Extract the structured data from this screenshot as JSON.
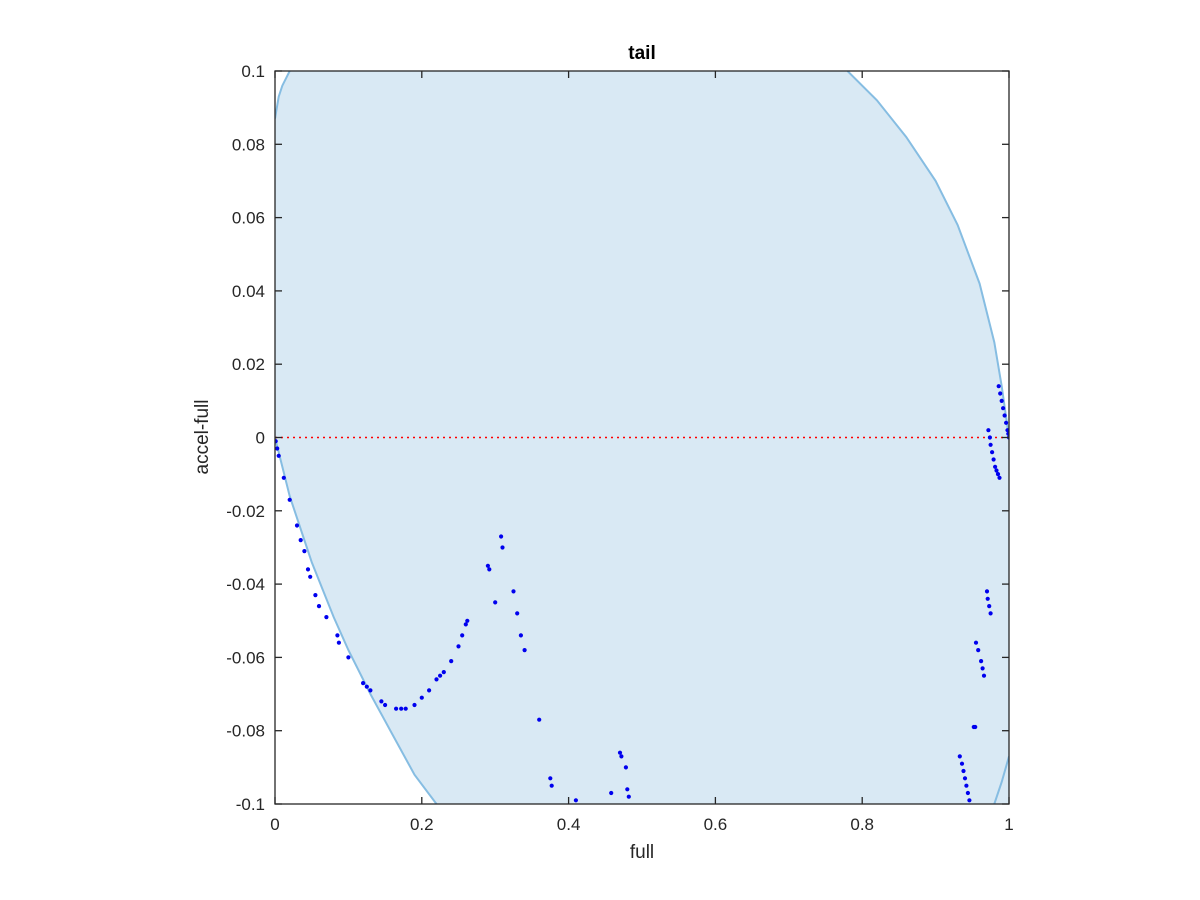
{
  "chart_data": {
    "type": "scatter",
    "title": "tail",
    "xlabel": "full",
    "ylabel": "accel-full",
    "xlim": [
      0,
      1
    ],
    "ylim": [
      -0.1,
      0.1
    ],
    "xticks": [
      0,
      0.2,
      0.4,
      0.6,
      0.8,
      1
    ],
    "xtick_labels": [
      "0",
      "0.2",
      "0.4",
      "0.6",
      "0.8",
      "1"
    ],
    "yticks": [
      -0.1,
      -0.08,
      -0.06,
      -0.04,
      -0.02,
      0,
      0.02,
      0.04,
      0.06,
      0.08,
      0.1
    ],
    "ytick_labels": [
      "-0.1",
      "-0.08",
      "-0.06",
      "-0.04",
      "-0.02",
      "0",
      "0.02",
      "0.04",
      "0.06",
      "0.08",
      "0.1"
    ],
    "grid": false,
    "colors": {
      "region_fill": "#d9e9f4",
      "region_edge": "#86bde2",
      "points": "#0000ee",
      "reference_line": "#ff0000",
      "axes": "#262626"
    },
    "region": {
      "left_boundary": [
        [
          0,
          0.087
        ],
        [
          0.005,
          0.093
        ],
        [
          0.01,
          0.096
        ],
        [
          0.02,
          0.1
        ]
      ],
      "right_boundary": [
        [
          0.78,
          0.1
        ],
        [
          0.82,
          0.092
        ],
        [
          0.86,
          0.082
        ],
        [
          0.9,
          0.07
        ],
        [
          0.93,
          0.058
        ],
        [
          0.96,
          0.042
        ],
        [
          0.98,
          0.026
        ],
        [
          0.99,
          0.014
        ],
        [
          1,
          0
        ]
      ],
      "lower_left_boundary": [
        [
          0,
          0
        ],
        [
          0.02,
          -0.016
        ],
        [
          0.05,
          -0.034
        ],
        [
          0.08,
          -0.049
        ],
        [
          0.1,
          -0.058
        ],
        [
          0.13,
          -0.07
        ],
        [
          0.16,
          -0.081
        ],
        [
          0.19,
          -0.092
        ],
        [
          0.22,
          -0.1
        ]
      ],
      "lower_right_boundary": [
        [
          0.98,
          -0.1
        ],
        [
          0.99,
          -0.094
        ],
        [
          1,
          -0.087
        ]
      ]
    },
    "reference_line": {
      "y": 0,
      "style": "dotted"
    },
    "series": [
      {
        "points": [
          [
            0.001,
            -0.001
          ],
          [
            0.003,
            -0.003
          ],
          [
            0.005,
            -0.005
          ],
          [
            0.012,
            -0.011
          ],
          [
            0.02,
            -0.017
          ],
          [
            0.03,
            -0.024
          ],
          [
            0.035,
            -0.028
          ],
          [
            0.04,
            -0.031
          ],
          [
            0.045,
            -0.036
          ],
          [
            0.048,
            -0.038
          ],
          [
            0.055,
            -0.043
          ],
          [
            0.06,
            -0.046
          ],
          [
            0.07,
            -0.049
          ],
          [
            0.085,
            -0.054
          ],
          [
            0.087,
            -0.056
          ],
          [
            0.1,
            -0.06
          ],
          [
            0.12,
            -0.067
          ],
          [
            0.125,
            -0.068
          ],
          [
            0.13,
            -0.069
          ],
          [
            0.145,
            -0.072
          ],
          [
            0.15,
            -0.073
          ],
          [
            0.165,
            -0.074
          ],
          [
            0.172,
            -0.074
          ],
          [
            0.178,
            -0.074
          ],
          [
            0.19,
            -0.073
          ],
          [
            0.2,
            -0.071
          ],
          [
            0.21,
            -0.069
          ],
          [
            0.22,
            -0.066
          ],
          [
            0.225,
            -0.065
          ],
          [
            0.23,
            -0.064
          ],
          [
            0.24,
            -0.061
          ],
          [
            0.25,
            -0.057
          ],
          [
            0.255,
            -0.054
          ],
          [
            0.26,
            -0.051
          ],
          [
            0.262,
            -0.05
          ],
          [
            0.29,
            -0.035
          ],
          [
            0.292,
            -0.036
          ],
          [
            0.3,
            -0.045
          ],
          [
            0.308,
            -0.027
          ],
          [
            0.31,
            -0.03
          ],
          [
            0.325,
            -0.042
          ],
          [
            0.33,
            -0.048
          ],
          [
            0.335,
            -0.054
          ],
          [
            0.34,
            -0.058
          ],
          [
            0.36,
            -0.077
          ],
          [
            0.375,
            -0.093
          ],
          [
            0.377,
            -0.095
          ],
          [
            0.41,
            -0.099
          ],
          [
            0.458,
            -0.097
          ],
          [
            0.47,
            -0.086
          ],
          [
            0.472,
            -0.087
          ],
          [
            0.478,
            -0.09
          ],
          [
            0.48,
            -0.096
          ],
          [
            0.482,
            -0.098
          ],
          [
            0.972,
            0.002
          ],
          [
            0.974,
            0.0
          ],
          [
            0.975,
            -0.002
          ],
          [
            0.977,
            -0.004
          ],
          [
            0.979,
            -0.006
          ],
          [
            0.981,
            -0.008
          ],
          [
            0.983,
            -0.009
          ],
          [
            0.985,
            -0.01
          ],
          [
            0.987,
            -0.011
          ],
          [
            0.986,
            0.014
          ],
          [
            0.988,
            0.012
          ],
          [
            0.99,
            0.01
          ],
          [
            0.992,
            0.008
          ],
          [
            0.994,
            0.006
          ],
          [
            0.996,
            0.004
          ],
          [
            0.998,
            0.002
          ],
          [
            0.999,
            0.001
          ],
          [
            1.0,
            0.0
          ],
          [
            0.97,
            -0.042
          ],
          [
            0.971,
            -0.044
          ],
          [
            0.973,
            -0.046
          ],
          [
            0.975,
            -0.048
          ],
          [
            0.955,
            -0.056
          ],
          [
            0.958,
            -0.058
          ],
          [
            0.962,
            -0.061
          ],
          [
            0.964,
            -0.063
          ],
          [
            0.966,
            -0.065
          ],
          [
            0.952,
            -0.079
          ],
          [
            0.954,
            -0.079
          ],
          [
            0.933,
            -0.087
          ],
          [
            0.936,
            -0.089
          ],
          [
            0.938,
            -0.091
          ],
          [
            0.94,
            -0.093
          ],
          [
            0.942,
            -0.095
          ],
          [
            0.944,
            -0.097
          ],
          [
            0.946,
            -0.099
          ]
        ]
      }
    ]
  }
}
